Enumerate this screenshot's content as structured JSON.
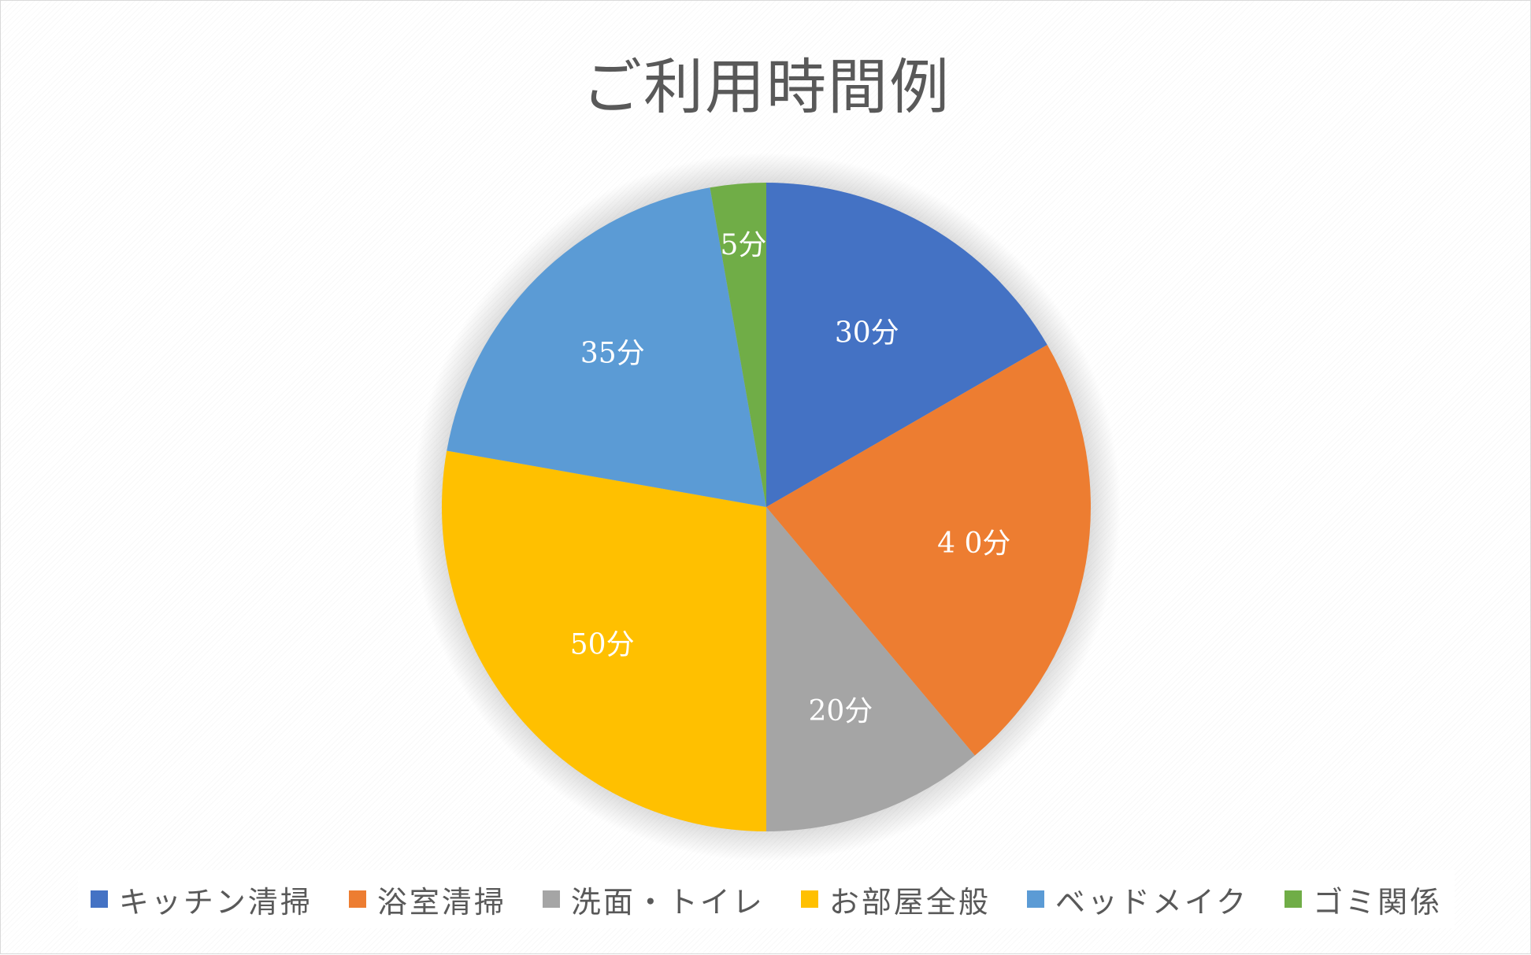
{
  "chart_data": {
    "type": "pie",
    "title": "ご利用時間例",
    "categories": [
      "キッチン清掃",
      "浴室清掃",
      "洗面・トイレ",
      "お部屋全般",
      "ベッドメイク",
      "ゴミ関係"
    ],
    "values": [
      30,
      40,
      20,
      50,
      35,
      5
    ],
    "data_labels": [
      "30分",
      "4 0分",
      "20分",
      "50分",
      "35分",
      "5分"
    ],
    "colors": [
      "#4472C4",
      "#ED7D31",
      "#A5A5A5",
      "#FFC000",
      "#5B9BD5",
      "#70AD47"
    ],
    "legend": "bottom",
    "start_angle": "12 o'clock",
    "direction": "clockwise"
  }
}
